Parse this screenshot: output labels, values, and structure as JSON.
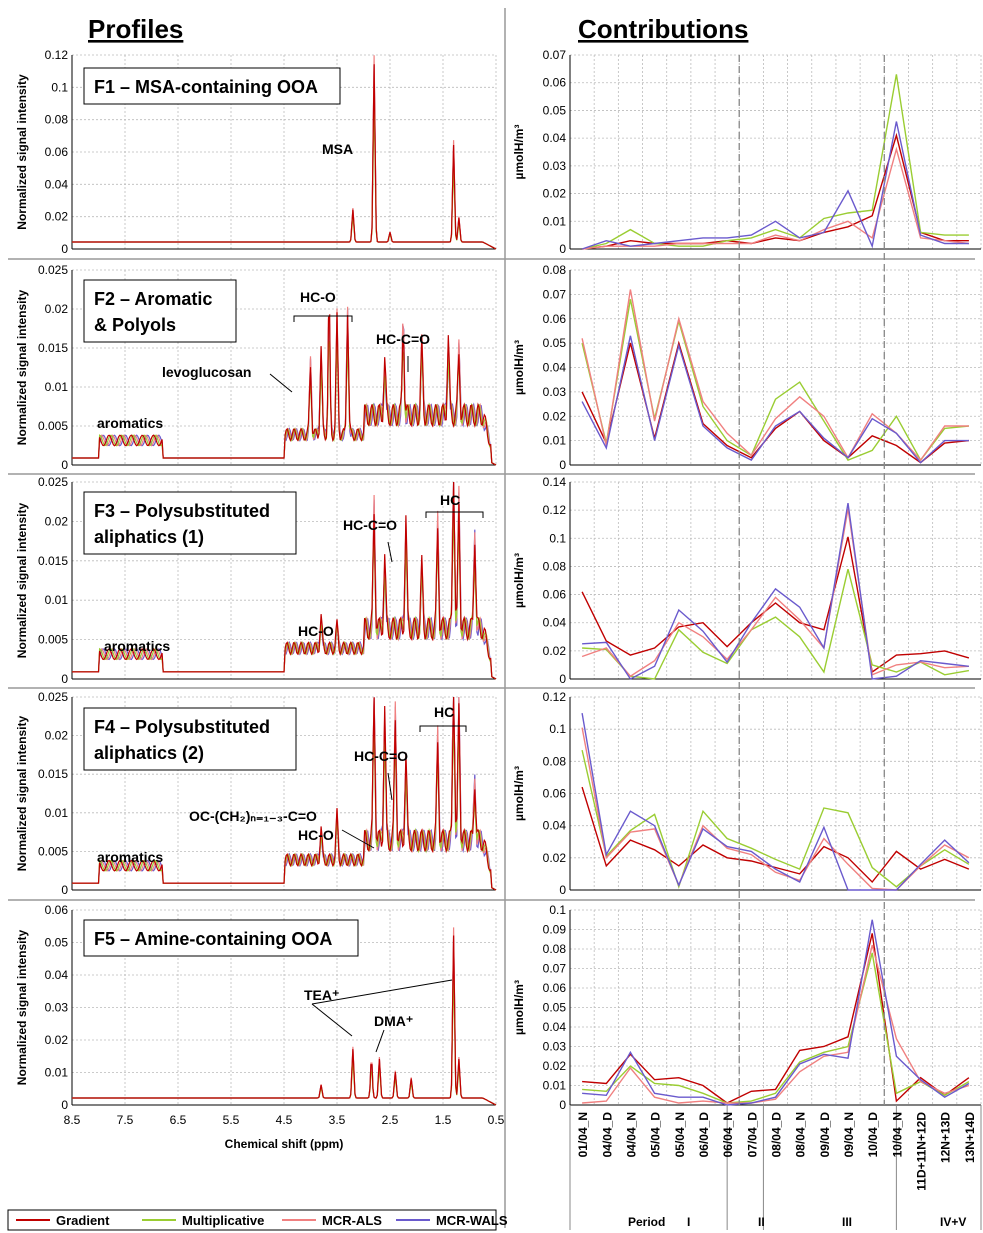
{
  "headers": {
    "profiles": "Profiles",
    "contributions": "Contributions"
  },
  "legend": [
    "Gradient",
    "Multiplicative",
    "MCR-ALS",
    "MCR-WALS"
  ],
  "colors": {
    "Gradient": "#c00000",
    "Multiplicative": "#9acd32",
    "MCR-ALS": "#f08080",
    "MCR-WALS": "#6a5acd"
  },
  "profile_xlabel": "Chemical shift (ppm)",
  "profile_ylabel": "Normalized signal intensity",
  "contrib_ylabel": "µmolH/m³",
  "periods": {
    "label": "Period",
    "names": [
      "I",
      "II",
      "III",
      "IV+V"
    ]
  },
  "chart_data": [
    {
      "id": "F1",
      "type": "line",
      "title": "F1 – MSA-containing OOA",
      "xlabel": "Chemical shift (ppm)",
      "xlim": [
        8.5,
        0.5
      ],
      "xticks": [
        "8.5",
        "7.5",
        "6.5",
        "5.5",
        "4.5",
        "3.5",
        "2.5",
        "1.5",
        "0.5"
      ],
      "ylabel": "Normalized signal intensity",
      "ylim": [
        0,
        0.12
      ],
      "yticks": [
        "0",
        "0.02",
        "0.04",
        "0.06",
        "0.08",
        "0.1",
        "0.12"
      ],
      "annotations": [
        "MSA"
      ],
      "peaks": [
        [
          3.2,
          0.02
        ],
        [
          2.8,
          0.11
        ],
        [
          2.5,
          0.006
        ],
        [
          1.3,
          0.06
        ],
        [
          1.2,
          0.015
        ]
      ]
    },
    {
      "id": "F2",
      "type": "line",
      "title": "F2 – Aromatic & Polyols",
      "title_lines": [
        "F2 – Aromatic",
        "& Polyols"
      ],
      "xlim": [
        8.5,
        0.5
      ],
      "ylim": [
        0,
        0.025
      ],
      "yticks": [
        "0",
        "0.005",
        "0.01",
        "0.015",
        "0.02",
        "0.025"
      ],
      "annotations": [
        "HC-O",
        "HC-C=O",
        "levoglucosan",
        "aromatics"
      ],
      "peaks": [
        [
          4.0,
          0.009
        ],
        [
          3.8,
          0.011
        ],
        [
          3.65,
          0.017
        ],
        [
          3.5,
          0.015
        ],
        [
          3.3,
          0.016
        ],
        [
          2.6,
          0.007
        ],
        [
          2.25,
          0.012
        ],
        [
          1.9,
          0.009
        ],
        [
          1.4,
          0.01
        ],
        [
          1.2,
          0.008
        ]
      ]
    },
    {
      "id": "F3",
      "type": "line",
      "title": "F3 – Polysubstituted aliphatics (1)",
      "title_lines": [
        "F3 – Polysubstituted",
        "aliphatics (1)"
      ],
      "xlim": [
        8.5,
        0.5
      ],
      "ylim": [
        0,
        0.025
      ],
      "yticks": [
        "0",
        "0.005",
        "0.01",
        "0.015",
        "0.02",
        "0.025"
      ],
      "annotations": [
        "HC",
        "HC-C=O",
        "HC-O",
        "aromatics"
      ],
      "peaks": [
        [
          3.8,
          0.004
        ],
        [
          3.5,
          0.003
        ],
        [
          2.8,
          0.015
        ],
        [
          2.6,
          0.009
        ],
        [
          2.2,
          0.014
        ],
        [
          1.9,
          0.008
        ],
        [
          1.6,
          0.013
        ],
        [
          1.3,
          0.021
        ],
        [
          1.2,
          0.016
        ],
        [
          0.9,
          0.012
        ]
      ]
    },
    {
      "id": "F4",
      "type": "line",
      "title": "F4 – Polysubstituted aliphatics (2)",
      "title_lines": [
        "F4 – Polysubstituted",
        "aliphatics (2)"
      ],
      "xlim": [
        8.5,
        0.5
      ],
      "ylim": [
        0,
        0.025
      ],
      "yticks": [
        "0",
        "0.005",
        "0.01",
        "0.015",
        "0.02",
        "0.025"
      ],
      "annotations": [
        "HC",
        "HC-C=O",
        "OC-(CH₂)ₙ₌₁₋₃-C=O",
        "HC-O",
        "aromatics"
      ],
      "peaks": [
        [
          3.8,
          0.004
        ],
        [
          3.5,
          0.006
        ],
        [
          2.8,
          0.019
        ],
        [
          2.6,
          0.017
        ],
        [
          2.4,
          0.016
        ],
        [
          2.2,
          0.011
        ],
        [
          1.6,
          0.013
        ],
        [
          1.3,
          0.022
        ],
        [
          1.2,
          0.018
        ],
        [
          0.9,
          0.008
        ]
      ]
    },
    {
      "id": "F5",
      "type": "line",
      "title": "F5 – Amine-containing OOA",
      "xlim": [
        8.5,
        0.5
      ],
      "ylim": [
        0,
        0.06
      ],
      "yticks": [
        "0",
        "0.01",
        "0.02",
        "0.03",
        "0.04",
        "0.05",
        "0.06"
      ],
      "annotations": [
        "TEA⁺",
        "DMA⁺"
      ],
      "peaks": [
        [
          3.8,
          0.004
        ],
        [
          3.2,
          0.015
        ],
        [
          2.85,
          0.012
        ],
        [
          2.7,
          0.012
        ],
        [
          2.4,
          0.008
        ],
        [
          2.1,
          0.006
        ],
        [
          1.3,
          0.05
        ],
        [
          1.2,
          0.012
        ]
      ]
    },
    {
      "id": "C1",
      "type": "line",
      "ylim": [
        0,
        0.07
      ],
      "yticks": [
        "0",
        "0.01",
        "0.02",
        "0.03",
        "0.04",
        "0.05",
        "0.06",
        "0.07"
      ],
      "categories": [
        "01/04_N",
        "04/04_D",
        "04/04_N",
        "05/04_D",
        "05/04_N",
        "06/04_D",
        "06/04_N",
        "07/04_D",
        "08/04_D",
        "08/04_N",
        "09/04_D",
        "09/04_N",
        "10/04_D",
        "10/04_N",
        "11D+11N+12D",
        "12N+13D",
        "13N+14D"
      ],
      "series": [
        {
          "name": "Gradient",
          "values": [
            0.0,
            0.001,
            0.003,
            0.002,
            0.002,
            0.002,
            0.003,
            0.002,
            0.004,
            0.003,
            0.006,
            0.008,
            0.012,
            0.041,
            0.006,
            0.003,
            0.003
          ]
        },
        {
          "name": "Multiplicative",
          "values": [
            0.0,
            0.002,
            0.007,
            0.002,
            0.001,
            0.001,
            0.003,
            0.004,
            0.007,
            0.004,
            0.011,
            0.013,
            0.014,
            0.063,
            0.006,
            0.005,
            0.005
          ]
        },
        {
          "name": "MCR-ALS",
          "values": [
            0.0,
            0.001,
            0.001,
            0.001,
            0.002,
            0.002,
            0.002,
            0.002,
            0.005,
            0.003,
            0.007,
            0.01,
            0.004,
            0.036,
            0.004,
            0.003,
            0.002
          ]
        },
        {
          "name": "MCR-WALS",
          "values": [
            0.0,
            0.003,
            0.001,
            0.002,
            0.003,
            0.004,
            0.004,
            0.005,
            0.01,
            0.004,
            0.006,
            0.021,
            0.001,
            0.046,
            0.005,
            0.002,
            0.002
          ]
        }
      ]
    },
    {
      "id": "C2",
      "type": "line",
      "ylim": [
        0,
        0.08
      ],
      "yticks": [
        "0",
        "0.01",
        "0.02",
        "0.03",
        "0.04",
        "0.05",
        "0.06",
        "0.07",
        "0.08"
      ],
      "series": [
        {
          "name": "Gradient",
          "values": [
            0.03,
            0.009,
            0.05,
            0.011,
            0.05,
            0.017,
            0.008,
            0.003,
            0.015,
            0.022,
            0.01,
            0.003,
            0.012,
            0.008,
            0.001,
            0.009,
            0.01
          ]
        },
        {
          "name": "Multiplicative",
          "values": [
            0.05,
            0.009,
            0.068,
            0.019,
            0.059,
            0.024,
            0.01,
            0.004,
            0.027,
            0.034,
            0.018,
            0.002,
            0.006,
            0.02,
            0.002,
            0.015,
            0.016
          ]
        },
        {
          "name": "MCR-ALS",
          "values": [
            0.052,
            0.008,
            0.072,
            0.018,
            0.06,
            0.026,
            0.013,
            0.004,
            0.019,
            0.028,
            0.02,
            0.003,
            0.021,
            0.013,
            0.002,
            0.016,
            0.016
          ]
        },
        {
          "name": "MCR-WALS",
          "values": [
            0.026,
            0.007,
            0.053,
            0.01,
            0.049,
            0.016,
            0.007,
            0.002,
            0.016,
            0.022,
            0.011,
            0.003,
            0.019,
            0.013,
            0.001,
            0.01,
            0.01
          ]
        }
      ]
    },
    {
      "id": "C3",
      "type": "line",
      "ylim": [
        0,
        0.14
      ],
      "yticks": [
        "0",
        "0.02",
        "0.04",
        "0.06",
        "0.08",
        "0.1",
        "0.12",
        "0.14"
      ],
      "series": [
        {
          "name": "Gradient",
          "values": [
            0.062,
            0.027,
            0.017,
            0.022,
            0.037,
            0.04,
            0.023,
            0.04,
            0.054,
            0.04,
            0.035,
            0.101,
            0.005,
            0.017,
            0.018,
            0.02,
            0.015
          ]
        },
        {
          "name": "Multiplicative",
          "values": [
            0.022,
            0.021,
            0.002,
            0.0,
            0.035,
            0.019,
            0.011,
            0.035,
            0.044,
            0.03,
            0.005,
            0.078,
            0.01,
            0.005,
            0.012,
            0.003,
            0.006
          ]
        },
        {
          "name": "MCR-ALS",
          "values": [
            0.016,
            0.022,
            0.002,
            0.013,
            0.04,
            0.03,
            0.014,
            0.035,
            0.058,
            0.042,
            0.022,
            0.121,
            0.003,
            0.01,
            0.012,
            0.008,
            0.009
          ]
        },
        {
          "name": "MCR-WALS",
          "values": [
            0.025,
            0.026,
            0.0,
            0.009,
            0.049,
            0.034,
            0.012,
            0.04,
            0.064,
            0.051,
            0.022,
            0.125,
            0.0,
            0.002,
            0.013,
            0.011,
            0.009
          ]
        }
      ]
    },
    {
      "id": "C4",
      "type": "line",
      "ylim": [
        0,
        0.12
      ],
      "yticks": [
        "0",
        "0.02",
        "0.04",
        "0.06",
        "0.08",
        "0.1",
        "0.12"
      ],
      "series": [
        {
          "name": "Gradient",
          "values": [
            0.064,
            0.015,
            0.031,
            0.025,
            0.015,
            0.028,
            0.02,
            0.018,
            0.014,
            0.01,
            0.027,
            0.02,
            0.005,
            0.024,
            0.013,
            0.019,
            0.013
          ]
        },
        {
          "name": "Multiplicative",
          "values": [
            0.087,
            0.021,
            0.037,
            0.047,
            0.002,
            0.049,
            0.032,
            0.026,
            0.019,
            0.013,
            0.051,
            0.048,
            0.014,
            0.002,
            0.015,
            0.025,
            0.016
          ]
        },
        {
          "name": "MCR-ALS",
          "values": [
            0.101,
            0.02,
            0.036,
            0.038,
            0.003,
            0.04,
            0.026,
            0.022,
            0.011,
            0.006,
            0.032,
            0.016,
            0.001,
            0.0,
            0.015,
            0.028,
            0.02
          ]
        },
        {
          "name": "MCR-WALS",
          "values": [
            0.11,
            0.022,
            0.049,
            0.04,
            0.003,
            0.038,
            0.027,
            0.024,
            0.013,
            0.005,
            0.039,
            0.0,
            0.0,
            0.0,
            0.016,
            0.031,
            0.017
          ]
        }
      ]
    },
    {
      "id": "C5",
      "type": "line",
      "ylim": [
        0,
        0.1
      ],
      "yticks": [
        "0",
        "0.01",
        "0.02",
        "0.03",
        "0.04",
        "0.05",
        "0.06",
        "0.07",
        "0.08",
        "0.09",
        "0.1"
      ],
      "series": [
        {
          "name": "Gradient",
          "values": [
            0.012,
            0.011,
            0.026,
            0.013,
            0.014,
            0.01,
            0.001,
            0.007,
            0.008,
            0.028,
            0.03,
            0.035,
            0.088,
            0.002,
            0.014,
            0.005,
            0.014
          ]
        },
        {
          "name": "Multiplicative",
          "values": [
            0.008,
            0.007,
            0.02,
            0.011,
            0.01,
            0.006,
            0.001,
            0.002,
            0.006,
            0.022,
            0.027,
            0.03,
            0.078,
            0.006,
            0.012,
            0.005,
            0.012
          ]
        },
        {
          "name": "MCR-ALS",
          "values": [
            0.001,
            0.002,
            0.019,
            0.004,
            0.001,
            0.002,
            0.001,
            0.001,
            0.003,
            0.017,
            0.025,
            0.027,
            0.082,
            0.034,
            0.012,
            0.006,
            0.01
          ]
        },
        {
          "name": "MCR-WALS",
          "values": [
            0.006,
            0.005,
            0.027,
            0.006,
            0.004,
            0.004,
            0.0,
            0.001,
            0.004,
            0.021,
            0.026,
            0.024,
            0.095,
            0.025,
            0.013,
            0.004,
            0.011
          ]
        }
      ]
    }
  ]
}
